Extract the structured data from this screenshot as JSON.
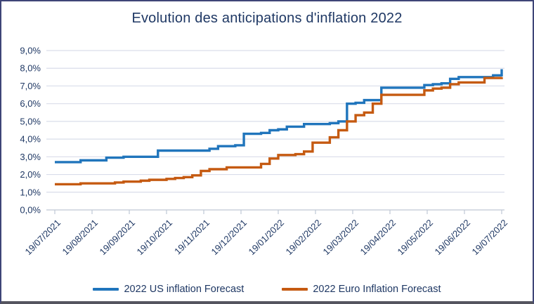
{
  "chart_data": {
    "type": "line",
    "step": true,
    "title": "Evolution des anticipations d'inflation 2022",
    "x_tick_labels": [
      "19/07/2021",
      "19/08/2021",
      "19/09/2021",
      "19/10/2021",
      "19/11/2021",
      "19/12/2021",
      "19/01/2022",
      "19/02/2022",
      "19/03/2022",
      "19/04/2022",
      "19/05/2022",
      "19/06/2022",
      "19/07/2022"
    ],
    "x_points_per_series": 53,
    "x_note": "weekly observations from 19/07/2021 to 19/07/2022",
    "ylim": [
      0,
      9
    ],
    "y_tick_labels": [
      "0,0%",
      "1,0%",
      "2,0%",
      "3,0%",
      "4,0%",
      "5,0%",
      "6,0%",
      "7,0%",
      "8,0%",
      "9,0%"
    ],
    "grid": true,
    "legend_position": "bottom",
    "series": [
      {
        "id": "us",
        "name": "2022 US inflation Forecast",
        "color": "#2075BC",
        "values": [
          2.7,
          2.7,
          2.7,
          2.8,
          2.8,
          2.8,
          2.95,
          2.95,
          3.0,
          3.0,
          3.0,
          3.0,
          3.35,
          3.35,
          3.35,
          3.35,
          3.35,
          3.35,
          3.45,
          3.6,
          3.6,
          3.65,
          4.3,
          4.3,
          4.35,
          4.5,
          4.55,
          4.7,
          4.7,
          4.85,
          4.85,
          4.85,
          4.9,
          5.0,
          6.0,
          6.05,
          6.2,
          6.2,
          6.9,
          6.9,
          6.9,
          6.9,
          6.9,
          7.05,
          7.1,
          7.15,
          7.4,
          7.5,
          7.5,
          7.5,
          7.5,
          7.6,
          7.95
        ]
      },
      {
        "id": "euro",
        "name": "2022 Euro Inflation Forecast",
        "color": "#C55A11",
        "values": [
          1.45,
          1.45,
          1.45,
          1.5,
          1.5,
          1.5,
          1.5,
          1.55,
          1.6,
          1.6,
          1.65,
          1.7,
          1.7,
          1.75,
          1.8,
          1.85,
          1.95,
          2.2,
          2.3,
          2.3,
          2.4,
          2.4,
          2.4,
          2.4,
          2.6,
          2.9,
          3.1,
          3.1,
          3.15,
          3.3,
          3.8,
          3.8,
          4.1,
          4.5,
          5.0,
          5.35,
          5.5,
          6.0,
          6.5,
          6.5,
          6.5,
          6.5,
          6.5,
          6.75,
          6.85,
          6.9,
          7.1,
          7.2,
          7.2,
          7.2,
          7.45,
          7.45,
          7.5
        ]
      }
    ]
  },
  "colors": {
    "title_text": "#1F3864",
    "axis_text": "#1F3864",
    "legend_text": "#1F3864",
    "gridline": "#D9DDEA",
    "axis_line": "#BFC7D4",
    "frame_border": "#3E4577"
  }
}
